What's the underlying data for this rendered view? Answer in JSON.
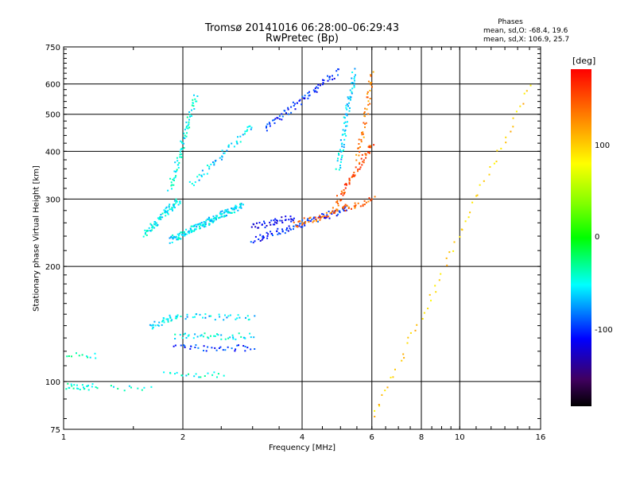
{
  "header": {
    "title_line1": "Tromsø 20141016 06:28:00–06:29:43",
    "title_line2": "RwPretec (Bp)",
    "phases_label": "Phases",
    "stat_o": "mean, sd,O: -68.4, 19.6",
    "stat_x": "mean, sd,X: 106.9, 25.7"
  },
  "colorbar": {
    "unit_label": "[deg]",
    "ticks": [
      "100",
      "0",
      "-100"
    ],
    "colors": [
      "#ff0000",
      "#ffff00",
      "#00ff00",
      "#00ffff",
      "#0000ff",
      "#000000"
    ]
  },
  "chart_data": {
    "type": "scatter",
    "title": "Tromsø 20141016 06:28:00–06:29:43",
    "subtitle": "RwPretec (Bp)",
    "xlabel": "Frequency [MHz]",
    "ylabel": "Stationary phase Virtual Height [km]",
    "x_scale": "log",
    "y_scale": "log",
    "xlim": [
      1,
      16
    ],
    "ylim": [
      75,
      750
    ],
    "x_ticks": [
      1,
      2,
      4,
      6,
      8,
      10,
      16
    ],
    "y_ticks": [
      75,
      100,
      200,
      300,
      400,
      500,
      600,
      750
    ],
    "grid": true,
    "color_scale": {
      "label": "[deg]",
      "range": [
        -180,
        180
      ],
      "ticks": [
        100,
        0,
        -100
      ]
    },
    "series": [
      {
        "f_start": 1.0,
        "f_end": 1.2,
        "h_start": 98,
        "h_end": 97,
        "phase": -40,
        "count": 25
      },
      {
        "f_start": 1.0,
        "f_end": 1.2,
        "h_start": 117,
        "h_end": 117,
        "phase": -40,
        "count": 12
      },
      {
        "f_start": 1.3,
        "f_end": 1.65,
        "h_start": 97,
        "h_end": 97,
        "phase": -40,
        "count": 10
      },
      {
        "f_start": 1.65,
        "f_end": 1.95,
        "h_start": 140,
        "h_end": 150,
        "phase": -55,
        "count": 35
      },
      {
        "f_start": 1.9,
        "f_end": 3.0,
        "h_start": 132,
        "h_end": 132,
        "phase": -50,
        "count": 40
      },
      {
        "f_start": 1.9,
        "f_end": 3.0,
        "h_start": 123,
        "h_end": 123,
        "phase": -95,
        "count": 35
      },
      {
        "f_start": 2.0,
        "f_end": 3.0,
        "h_start": 148,
        "h_end": 148,
        "phase": -60,
        "count": 30
      },
      {
        "f_start": 1.8,
        "f_end": 2.5,
        "h_start": 105,
        "h_end": 105,
        "phase": -45,
        "count": 20
      },
      {
        "f_start": 1.6,
        "f_end": 1.95,
        "h_start": 245,
        "h_end": 300,
        "phase": -50,
        "count": 80
      },
      {
        "f_start": 1.85,
        "f_end": 2.8,
        "h_start": 235,
        "h_end": 290,
        "phase": -55,
        "count": 170
      },
      {
        "f_start": 1.85,
        "f_end": 2.15,
        "h_start": 320,
        "h_end": 560,
        "phase": -45,
        "count": 70
      },
      {
        "f_start": 2.1,
        "f_end": 3.0,
        "h_start": 330,
        "h_end": 470,
        "phase": -60,
        "count": 50
      },
      {
        "f_start": 3.0,
        "f_end": 5.2,
        "h_start": 235,
        "h_end": 285,
        "phase": -100,
        "count": 90
      },
      {
        "f_start": 3.0,
        "f_end": 3.8,
        "h_start": 255,
        "h_end": 270,
        "phase": -110,
        "count": 40
      },
      {
        "f_start": 3.8,
        "f_end": 6.0,
        "h_start": 258,
        "h_end": 300,
        "phase": 140,
        "count": 70
      },
      {
        "f_start": 4.8,
        "f_end": 6.0,
        "h_start": 290,
        "h_end": 420,
        "phase": 150,
        "count": 60
      },
      {
        "f_start": 3.2,
        "f_end": 4.9,
        "h_start": 460,
        "h_end": 650,
        "phase": -100,
        "count": 70
      },
      {
        "f_start": 4.9,
        "f_end": 5.4,
        "h_start": 360,
        "h_end": 650,
        "phase": -60,
        "count": 70
      },
      {
        "f_start": 5.5,
        "f_end": 6.0,
        "h_start": 380,
        "h_end": 640,
        "phase": 130,
        "count": 45
      },
      {
        "f_start": 6.0,
        "f_end": 15.0,
        "h_start": 80,
        "h_end": 600,
        "phase": 100,
        "count": 60
      }
    ]
  }
}
